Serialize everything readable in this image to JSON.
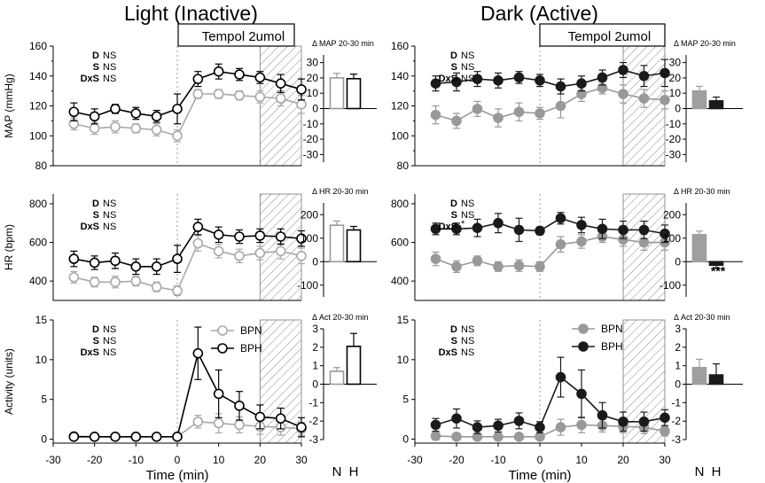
{
  "titles": {
    "left": "Light (Inactive)",
    "right": "Dark (Active)"
  },
  "treatment_label": "Tempol 2umol",
  "xlabel": "Time (min)",
  "bar_group_labels": [
    "N",
    "H"
  ],
  "legend": {
    "bpn": "BPN",
    "bph": "BPH"
  },
  "colors": {
    "bpn_light": "#a9a9a9",
    "bph_light": "#000000",
    "bpn_dark": "#999999",
    "bph_dark": "#1a1a1a"
  },
  "chart_data": [
    {
      "id": "light-map",
      "type": "line",
      "phase": "light",
      "ylabel": "MAP (mmHg)",
      "ylim": [
        80,
        160
      ],
      "yticks": [
        80,
        100,
        120,
        140,
        160
      ],
      "xlim": [
        -30,
        30
      ],
      "xticks": [
        -30,
        -20,
        -10,
        0,
        10,
        20,
        30
      ],
      "x": [
        -25,
        -20,
        -15,
        -10,
        -5,
        0,
        5,
        10,
        15,
        20,
        25,
        30
      ],
      "series": [
        {
          "name": "BPN",
          "values": [
            108,
            105,
            106,
            105,
            104,
            100,
            128,
            128,
            127,
            126,
            125,
            121
          ],
          "errors": [
            4,
            4,
            4,
            3,
            4,
            4,
            3,
            3,
            3,
            4,
            5,
            6
          ]
        },
        {
          "name": "BPH",
          "values": [
            116,
            113,
            118,
            115,
            113,
            118,
            138,
            143,
            141,
            139,
            135,
            131
          ],
          "errors": [
            6,
            5,
            3,
            4,
            4,
            10,
            5,
            5,
            4,
            4,
            6,
            7
          ]
        }
      ],
      "stats": [
        {
          "label": "D",
          "value": "NS"
        },
        {
          "label": "S",
          "value": "NS"
        },
        {
          "label": "DxS",
          "value": "NS"
        }
      ]
    },
    {
      "id": "light-hr",
      "type": "line",
      "phase": "light",
      "ylabel": "HR (bpm)",
      "ylim": [
        300,
        850
      ],
      "yticks": [
        400,
        600,
        800
      ],
      "x": [
        -25,
        -20,
        -15,
        -10,
        -5,
        0,
        5,
        10,
        15,
        20,
        25,
        30
      ],
      "series": [
        {
          "name": "BPN",
          "values": [
            420,
            395,
            395,
            400,
            370,
            350,
            595,
            555,
            530,
            545,
            555,
            530
          ],
          "errors": [
            30,
            25,
            30,
            25,
            25,
            25,
            40,
            35,
            35,
            35,
            40,
            40
          ]
        },
        {
          "name": "BPH",
          "values": [
            515,
            495,
            505,
            475,
            475,
            515,
            680,
            640,
            630,
            635,
            630,
            620
          ],
          "errors": [
            40,
            35,
            40,
            40,
            40,
            70,
            40,
            40,
            35,
            35,
            40,
            40
          ]
        }
      ],
      "stats": [
        {
          "label": "D",
          "value": "NS"
        },
        {
          "label": "S",
          "value": "NS"
        },
        {
          "label": "DxS",
          "value": "NS"
        }
      ]
    },
    {
      "id": "light-act",
      "type": "line",
      "phase": "light",
      "ylabel": "Activity  (units)",
      "ylim": [
        -0.5,
        15
      ],
      "yticks": [
        0,
        5,
        10,
        15
      ],
      "x": [
        -25,
        -20,
        -15,
        -10,
        -5,
        0,
        5,
        10,
        15,
        20,
        25,
        30
      ],
      "series": [
        {
          "name": "BPN",
          "values": [
            0.4,
            0.3,
            0.3,
            0.3,
            0.3,
            0.3,
            2.2,
            2.0,
            1.8,
            1.6,
            1.5,
            1.3
          ],
          "errors": [
            0.3,
            0.2,
            0.2,
            0.2,
            0.2,
            0.2,
            0.8,
            1.2,
            1.0,
            1.0,
            1.0,
            0.8
          ]
        },
        {
          "name": "BPH",
          "values": [
            0.3,
            0.3,
            0.3,
            0.3,
            0.3,
            0.3,
            10.8,
            5.7,
            4.2,
            2.8,
            2.6,
            1.5
          ],
          "errors": [
            0.3,
            0.2,
            0.2,
            0.2,
            0.2,
            0.2,
            3.3,
            3.0,
            1.8,
            1.5,
            1.3,
            1.2
          ]
        }
      ],
      "stats": [
        {
          "label": "D",
          "value": "NS"
        },
        {
          "label": "S",
          "value": "NS"
        },
        {
          "label": "DxS",
          "value": "NS"
        }
      ]
    },
    {
      "id": "dark-map",
      "type": "line",
      "phase": "dark",
      "ylabel": "",
      "ylim": [
        80,
        160
      ],
      "x": [
        -25,
        -20,
        -15,
        -10,
        -5,
        0,
        5,
        10,
        15,
        20,
        25,
        30
      ],
      "series": [
        {
          "name": "BPN",
          "values": [
            114,
            110,
            118,
            112,
            116,
            115,
            120,
            128,
            132,
            128,
            125,
            124
          ],
          "errors": [
            6,
            5,
            5,
            6,
            6,
            4,
            8,
            5,
            4,
            6,
            6,
            6
          ]
        },
        {
          "name": "BPH",
          "values": [
            135,
            136,
            138,
            137,
            139,
            137,
            133,
            135,
            139,
            144,
            140,
            142
          ],
          "errors": [
            5,
            6,
            5,
            5,
            4,
            4,
            5,
            5,
            5,
            5,
            7,
            9
          ]
        }
      ],
      "stats": [
        {
          "label": "D",
          "value": "NS"
        },
        {
          "label": "S",
          "value": "NS"
        },
        {
          "label": "DxS",
          "value": "NS"
        }
      ]
    },
    {
      "id": "dark-hr",
      "type": "line",
      "phase": "dark",
      "ylabel": "",
      "ylim": [
        300,
        850
      ],
      "x": [
        -25,
        -20,
        -15,
        -10,
        -5,
        0,
        5,
        10,
        15,
        20,
        25,
        30
      ],
      "series": [
        {
          "name": "BPN",
          "values": [
            515,
            475,
            505,
            475,
            480,
            475,
            590,
            605,
            630,
            615,
            600,
            600
          ],
          "errors": [
            35,
            30,
            25,
            25,
            30,
            25,
            40,
            35,
            30,
            35,
            40,
            40
          ]
        },
        {
          "name": "BPH",
          "values": [
            670,
            670,
            675,
            700,
            665,
            660,
            725,
            690,
            670,
            665,
            665,
            645
          ],
          "errors": [
            30,
            30,
            45,
            50,
            60,
            20,
            30,
            40,
            50,
            45,
            45,
            45
          ]
        }
      ],
      "stats": [
        {
          "label": "D",
          "value": "NS"
        },
        {
          "label": "S",
          "value": "NS"
        },
        {
          "label": "DxS",
          "value": "*"
        }
      ]
    },
    {
      "id": "dark-act",
      "type": "line",
      "phase": "dark",
      "ylabel": "",
      "ylim": [
        -0.5,
        15
      ],
      "x": [
        -25,
        -20,
        -15,
        -10,
        -5,
        0,
        5,
        10,
        15,
        20,
        25,
        30
      ],
      "series": [
        {
          "name": "BPN",
          "values": [
            0.4,
            0.3,
            0.3,
            0.3,
            0.3,
            0.3,
            1.5,
            1.8,
            1.7,
            1.6,
            1.5,
            1.0
          ],
          "errors": [
            0.5,
            0.4,
            0.4,
            0.4,
            0.4,
            0.3,
            1.0,
            1.0,
            0.8,
            0.8,
            0.8,
            0.6
          ]
        },
        {
          "name": "BPH",
          "values": [
            1.8,
            2.6,
            1.5,
            1.7,
            2.3,
            1.5,
            7.8,
            5.7,
            3.0,
            2.2,
            2.2,
            2.7
          ],
          "errors": [
            0.8,
            1.2,
            0.8,
            0.8,
            1.0,
            0.7,
            2.5,
            3.0,
            1.6,
            1.2,
            1.2,
            1.0
          ]
        }
      ],
      "stats": [
        {
          "label": "D",
          "value": "NS"
        },
        {
          "label": "S",
          "value": "NS"
        },
        {
          "label": "DxS",
          "value": "NS"
        }
      ]
    },
    {
      "id": "light-dmap",
      "type": "bar",
      "phase": "light",
      "title": "Δ MAP 20-30 min",
      "ylim": [
        -35,
        35
      ],
      "yticks": [
        -30,
        -20,
        -10,
        0,
        10,
        20,
        30
      ],
      "categories": [
        "N",
        "H"
      ],
      "values": [
        20,
        19.5
      ],
      "errors": [
        3,
        3
      ],
      "significance": ""
    },
    {
      "id": "light-dhr",
      "type": "bar",
      "phase": "light",
      "title": "Δ HR 20-30 min",
      "ylim": [
        -150,
        250
      ],
      "yticks": [
        -100,
        0,
        100,
        200
      ],
      "categories": [
        "N",
        "H"
      ],
      "values": [
        155,
        135
      ],
      "errors": [
        18,
        15
      ],
      "significance": ""
    },
    {
      "id": "light-dact",
      "type": "bar",
      "phase": "light",
      "title": "Δ Act 20-30 min",
      "ylim": [
        -3,
        3
      ],
      "yticks": [
        -3,
        -2,
        -1,
        0,
        1,
        2,
        3
      ],
      "categories": [
        "N",
        "H"
      ],
      "values": [
        0.7,
        2.05
      ],
      "errors": [
        0.2,
        0.7
      ],
      "significance": ""
    },
    {
      "id": "dark-dmap",
      "type": "bar",
      "phase": "dark",
      "title": "Δ MAP 20-30 min",
      "ylim": [
        -35,
        35
      ],
      "yticks": [
        -30,
        -20,
        -10,
        0,
        10,
        20,
        30
      ],
      "categories": [
        "N",
        "H"
      ],
      "values": [
        11.5,
        5
      ],
      "errors": [
        3,
        2.5
      ],
      "significance": ""
    },
    {
      "id": "dark-dhr",
      "type": "bar",
      "phase": "dark",
      "title": "Δ HR 20-30 min",
      "ylim": [
        -150,
        250
      ],
      "yticks": [
        -100,
        0,
        100,
        200
      ],
      "categories": [
        "N",
        "H"
      ],
      "values": [
        115,
        -15
      ],
      "errors": [
        15,
        12
      ],
      "significance": "***"
    },
    {
      "id": "dark-dact",
      "type": "bar",
      "phase": "dark",
      "title": "Δ Act 20-30 min",
      "ylim": [
        -3,
        3
      ],
      "yticks": [
        -3,
        -2,
        -1,
        0,
        1,
        2,
        3
      ],
      "categories": [
        "N",
        "H"
      ],
      "values": [
        0.9,
        0.5
      ],
      "errors": [
        0.45,
        0.6
      ],
      "significance": ""
    }
  ]
}
